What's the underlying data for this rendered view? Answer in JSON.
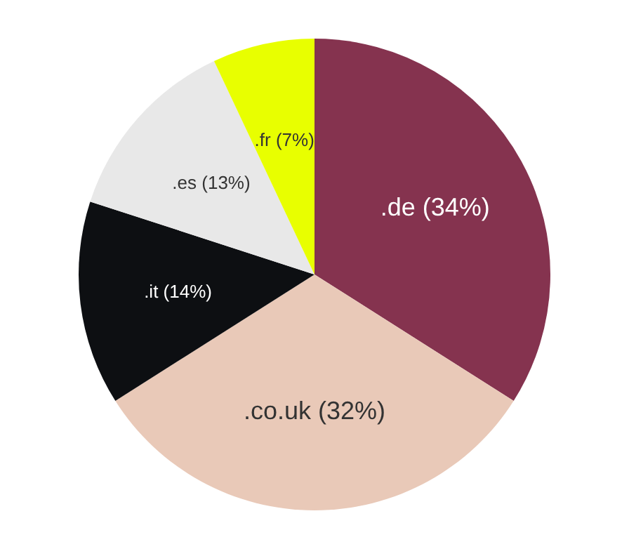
{
  "chart_data": {
    "type": "pie",
    "categories": [
      ".de",
      ".co.uk",
      ".it",
      ".es",
      ".fr"
    ],
    "values": [
      34,
      32,
      14,
      13,
      7
    ],
    "colors": [
      "#85334f",
      "#e9c9b8",
      "#0d0f12",
      "#e8e8e8",
      "#e8ff00"
    ],
    "value_labels": [
      "(34%)",
      "(32%)",
      "(14%)",
      "(13%)",
      "(7%)"
    ],
    "legend": false
  }
}
